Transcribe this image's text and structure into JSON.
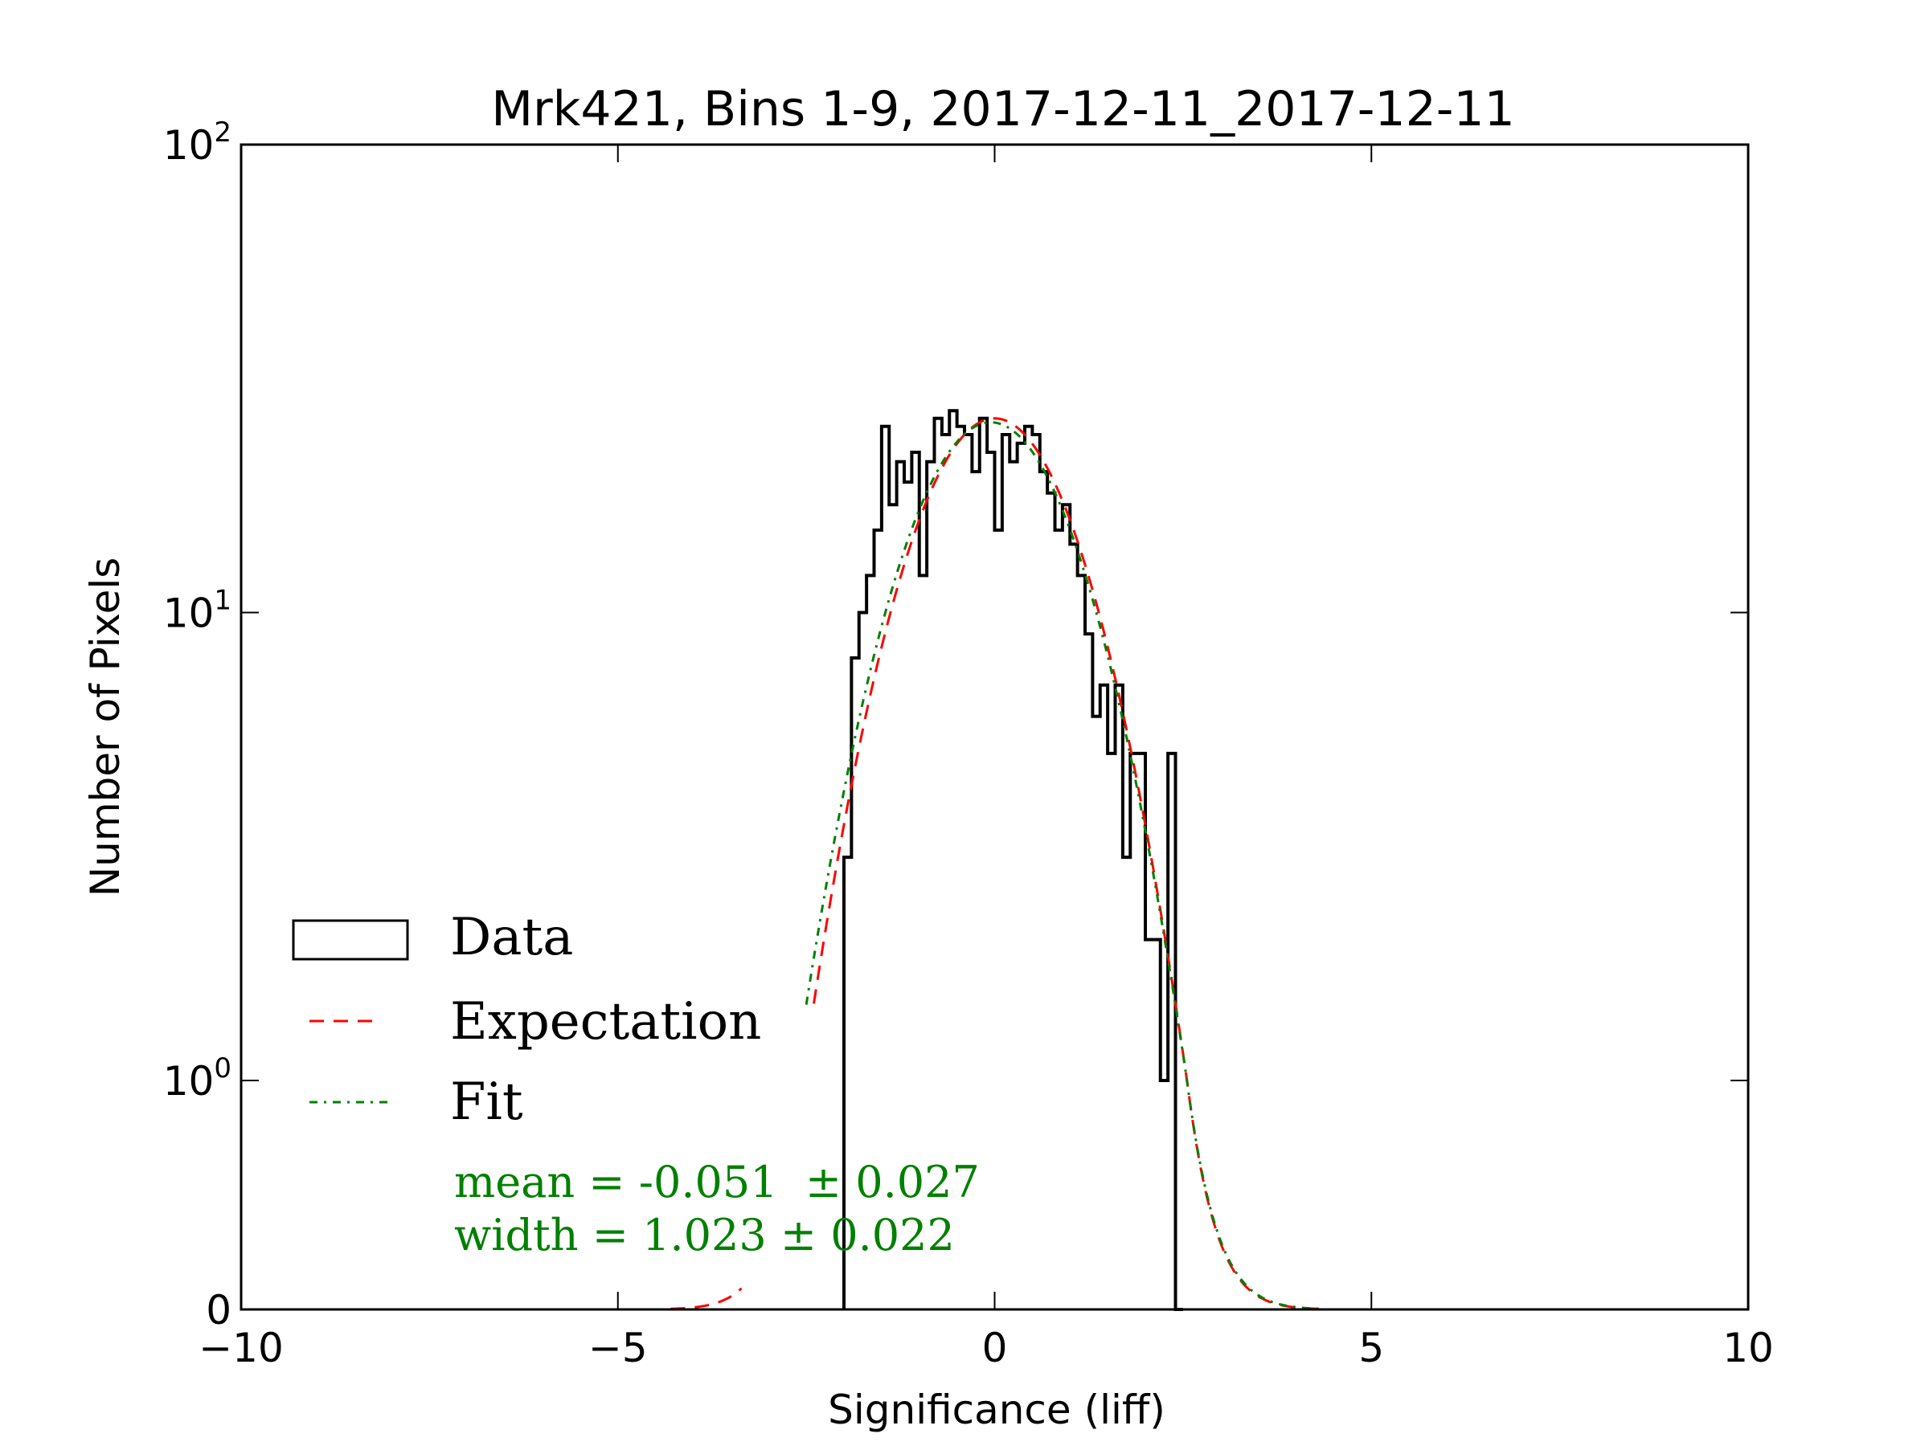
{
  "chart_data": {
    "type": "histogram",
    "title": "Mrk421, Bins 1-9, 2017-12-11_2017-12-11",
    "xlabel": "Significance (liff)",
    "ylabel": "Number of Pixels",
    "xlim": [
      -10,
      10
    ],
    "yscale": "symlog",
    "ylim": [
      0,
      100
    ],
    "xticks": [
      {
        "value": -10,
        "label": "−10"
      },
      {
        "value": -5,
        "label": "−5"
      },
      {
        "value": 0,
        "label": "0"
      },
      {
        "value": 5,
        "label": "5"
      },
      {
        "value": 10,
        "label": "10"
      }
    ],
    "yticks": [
      {
        "value": 0,
        "base": "0",
        "exp": ""
      },
      {
        "value": 1,
        "base": "10",
        "exp": "0"
      },
      {
        "value": 10,
        "base": "10",
        "exp": "1"
      },
      {
        "value": 100,
        "base": "10",
        "exp": "2"
      }
    ],
    "series": [
      {
        "name": "Data",
        "kind": "step",
        "color": "#000000",
        "bin_width": 0.1,
        "bins_left_edges": [
          -2.0,
          -1.9,
          -1.8,
          -1.7,
          -1.6,
          -1.5,
          -1.4,
          -1.3,
          -1.2,
          -1.1,
          -1.0,
          -0.9,
          -0.8,
          -0.7,
          -0.6,
          -0.5,
          -0.4,
          -0.3,
          -0.2,
          -0.1,
          0.0,
          0.1,
          0.2,
          0.3,
          0.4,
          0.5,
          0.6,
          0.7,
          0.8,
          0.9,
          1.0,
          1.1,
          1.2,
          1.3,
          1.4,
          1.5,
          1.6,
          1.7,
          1.8,
          1.9,
          2.0,
          2.1,
          2.2,
          2.3,
          2.4
        ],
        "counts": [
          3,
          8,
          10,
          12,
          15,
          25,
          17,
          21,
          19,
          22,
          12,
          21,
          26,
          24,
          27,
          25,
          24,
          20,
          26,
          22,
          15,
          24,
          21,
          23,
          25,
          24,
          20,
          18,
          15,
          17,
          14,
          12,
          9,
          6,
          7,
          5,
          7,
          3,
          5,
          5,
          2,
          2,
          1,
          5,
          0
        ]
      },
      {
        "name": "Expectation",
        "kind": "gaussian",
        "color": "#ff0000",
        "amplitude": 26,
        "mean": 0.0,
        "sigma": 1.0
      },
      {
        "name": "Fit",
        "kind": "gaussian",
        "color": "#008000",
        "amplitude": 25.5,
        "mean": -0.051,
        "sigma": 1.023
      }
    ],
    "legend": {
      "position": "lower-left",
      "entries": [
        "Data",
        "Expectation",
        "Fit"
      ]
    },
    "annotations": [
      "mean = -0.051  ± 0.027",
      "width = 1.023 ± 0.022"
    ],
    "annotation_color": "#008000"
  }
}
